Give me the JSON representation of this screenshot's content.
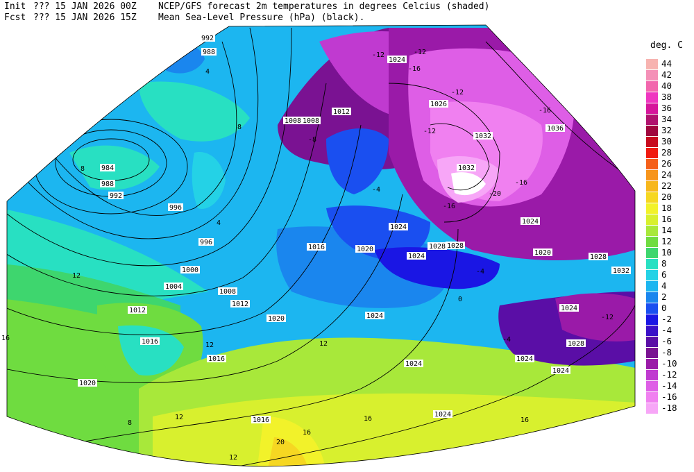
{
  "header": {
    "init_label": "Init",
    "init_value": "??? 15 JAN 2026 00Z",
    "fcst_label": "Fcst",
    "fcst_value": "??? 15 JAN 2026 15Z",
    "title_line1": "NCEP/GFS forecast 2m temperatures in degrees Celcius (shaded)",
    "title_line2": "Mean Sea-Level Pressure (hPa) (black)."
  },
  "legend": {
    "title": "deg. C",
    "levels": [
      {
        "label": "44",
        "color": "#f7b3b0"
      },
      {
        "label": "42",
        "color": "#f490b7"
      },
      {
        "label": "40",
        "color": "#f266ad"
      },
      {
        "label": "38",
        "color": "#ef36c0"
      },
      {
        "label": "36",
        "color": "#d6169b"
      },
      {
        "label": "34",
        "color": "#b0126e"
      },
      {
        "label": "32",
        "color": "#a0073e"
      },
      {
        "label": "30",
        "color": "#c80a1e"
      },
      {
        "label": "28",
        "color": "#f01a10"
      },
      {
        "label": "26",
        "color": "#f5601a"
      },
      {
        "label": "24",
        "color": "#f7951c"
      },
      {
        "label": "22",
        "color": "#f7b71c"
      },
      {
        "label": "20",
        "color": "#f6d722"
      },
      {
        "label": "18",
        "color": "#f2f22a"
      },
      {
        "label": "16",
        "color": "#d8f02e"
      },
      {
        "label": "14",
        "color": "#a8e83a"
      },
      {
        "label": "12",
        "color": "#6fdc40"
      },
      {
        "label": "10",
        "color": "#3ed66e"
      },
      {
        "label": "8",
        "color": "#28e0c2"
      },
      {
        "label": "6",
        "color": "#24d2e6"
      },
      {
        "label": "4",
        "color": "#1cb6f0"
      },
      {
        "label": "2",
        "color": "#1a86ee"
      },
      {
        "label": "0",
        "color": "#1a4ff0"
      },
      {
        "label": "-2",
        "color": "#1a16e4"
      },
      {
        "label": "-4",
        "color": "#3a10c8"
      },
      {
        "label": "-6",
        "color": "#5a0ea6"
      },
      {
        "label": "-8",
        "color": "#7a1292"
      },
      {
        "label": "-10",
        "color": "#9a1aa8"
      },
      {
        "label": "-12",
        "color": "#c03ad0"
      },
      {
        "label": "-14",
        "color": "#de5ee6"
      },
      {
        "label": "-16",
        "color": "#f080f0"
      },
      {
        "label": "-18",
        "color": "#f7a6f7"
      }
    ]
  },
  "map": {
    "pressure_labels": [
      "992",
      "988",
      "984",
      "988",
      "992",
      "996",
      "996",
      "1000",
      "1004",
      "1008",
      "1012",
      "1012",
      "1016",
      "1016",
      "1020",
      "1016",
      "1020",
      "1016",
      "1020",
      "1024",
      "1024",
      "1024",
      "1024",
      "1028",
      "1024",
      "1032",
      "1036",
      "1032",
      "1024",
      "1028",
      "1020",
      "1028",
      "1032",
      "1024",
      "1028",
      "1024",
      "1024",
      "1012",
      "1008",
      "1008",
      "1024",
      "1026"
    ],
    "temp_labels": [
      "-12",
      "-16",
      "-12",
      "-16",
      "-12",
      "-16",
      "-20",
      "-8",
      "-4",
      "-4",
      "-4",
      "0",
      "4",
      "8",
      "12",
      "16",
      "20",
      "16",
      "12",
      "8",
      "4",
      "16",
      "12",
      "8",
      "16",
      "12",
      "12",
      "-12",
      "-16",
      "-12"
    ]
  }
}
